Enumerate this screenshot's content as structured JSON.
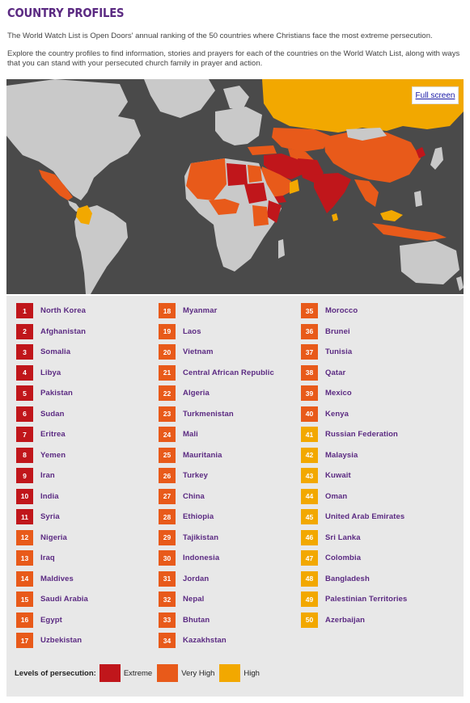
{
  "title": "COUNTRY PROFILES",
  "intro": "The World Watch List is Open Doors' annual ranking of the 50 countries where Christians face the most extreme persecution.",
  "explore": "Explore the country profiles to find information, stories and prayers for each of the countries on the World Watch List, along with ways that you can stand with your persecuted church family in prayer and action.",
  "map": {
    "fullscreen_label": "Full screen",
    "colors": {
      "ocean": "#4a4a4a",
      "land": "#c9c9c9",
      "extreme": "#c0161b",
      "very_high": "#e85a1a",
      "high": "#f2a800"
    }
  },
  "columns": [
    [
      {
        "rank": "1",
        "name": "North Korea",
        "level": "ext"
      },
      {
        "rank": "2",
        "name": "Afghanistan",
        "level": "ext"
      },
      {
        "rank": "3",
        "name": "Somalia",
        "level": "ext"
      },
      {
        "rank": "4",
        "name": "Libya",
        "level": "ext"
      },
      {
        "rank": "5",
        "name": "Pakistan",
        "level": "ext"
      },
      {
        "rank": "6",
        "name": "Sudan",
        "level": "ext"
      },
      {
        "rank": "7",
        "name": "Eritrea",
        "level": "ext"
      },
      {
        "rank": "8",
        "name": "Yemen",
        "level": "ext"
      },
      {
        "rank": "9",
        "name": "Iran",
        "level": "ext"
      },
      {
        "rank": "10",
        "name": "India",
        "level": "ext"
      },
      {
        "rank": "11",
        "name": "Syria",
        "level": "ext"
      },
      {
        "rank": "12",
        "name": "Nigeria",
        "level": "vh"
      },
      {
        "rank": "13",
        "name": "Iraq",
        "level": "vh"
      },
      {
        "rank": "14",
        "name": "Maldives",
        "level": "vh"
      },
      {
        "rank": "15",
        "name": "Saudi Arabia",
        "level": "vh"
      },
      {
        "rank": "16",
        "name": "Egypt",
        "level": "vh"
      },
      {
        "rank": "17",
        "name": "Uzbekistan",
        "level": "vh"
      }
    ],
    [
      {
        "rank": "18",
        "name": "Myanmar",
        "level": "vh"
      },
      {
        "rank": "19",
        "name": "Laos",
        "level": "vh"
      },
      {
        "rank": "20",
        "name": "Vietnam",
        "level": "vh"
      },
      {
        "rank": "21",
        "name": "Central African Republic",
        "level": "vh"
      },
      {
        "rank": "22",
        "name": "Algeria",
        "level": "vh"
      },
      {
        "rank": "23",
        "name": "Turkmenistan",
        "level": "vh"
      },
      {
        "rank": "24",
        "name": "Mali",
        "level": "vh"
      },
      {
        "rank": "25",
        "name": "Mauritania",
        "level": "vh"
      },
      {
        "rank": "26",
        "name": "Turkey",
        "level": "vh"
      },
      {
        "rank": "27",
        "name": "China",
        "level": "vh"
      },
      {
        "rank": "28",
        "name": "Ethiopia",
        "level": "vh"
      },
      {
        "rank": "29",
        "name": "Tajikistan",
        "level": "vh"
      },
      {
        "rank": "30",
        "name": "Indonesia",
        "level": "vh"
      },
      {
        "rank": "31",
        "name": "Jordan",
        "level": "vh"
      },
      {
        "rank": "32",
        "name": "Nepal",
        "level": "vh"
      },
      {
        "rank": "33",
        "name": "Bhutan",
        "level": "vh"
      },
      {
        "rank": "34",
        "name": "Kazakhstan",
        "level": "vh"
      }
    ],
    [
      {
        "rank": "35",
        "name": "Morocco",
        "level": "vh"
      },
      {
        "rank": "36",
        "name": "Brunei",
        "level": "vh"
      },
      {
        "rank": "37",
        "name": "Tunisia",
        "level": "vh"
      },
      {
        "rank": "38",
        "name": "Qatar",
        "level": "vh"
      },
      {
        "rank": "39",
        "name": "Mexico",
        "level": "vh"
      },
      {
        "rank": "40",
        "name": "Kenya",
        "level": "vh"
      },
      {
        "rank": "41",
        "name": "Russian Federation",
        "level": "hi"
      },
      {
        "rank": "42",
        "name": "Malaysia",
        "level": "hi"
      },
      {
        "rank": "43",
        "name": "Kuwait",
        "level": "hi"
      },
      {
        "rank": "44",
        "name": "Oman",
        "level": "hi"
      },
      {
        "rank": "45",
        "name": "United Arab Emirates",
        "level": "hi"
      },
      {
        "rank": "46",
        "name": "Sri Lanka",
        "level": "hi"
      },
      {
        "rank": "47",
        "name": "Colombia",
        "level": "hi"
      },
      {
        "rank": "48",
        "name": "Bangladesh",
        "level": "hi"
      },
      {
        "rank": "49",
        "name": "Palestinian Territories",
        "level": "hi"
      },
      {
        "rank": "50",
        "name": "Azerbaijan",
        "level": "hi"
      }
    ]
  ],
  "legend": {
    "label": "Levels of persecution:",
    "extreme": "Extreme",
    "very_high": "Very High",
    "high": "High"
  }
}
